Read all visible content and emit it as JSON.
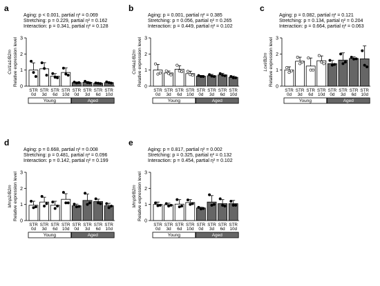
{
  "colors": {
    "young_fill": "#ffffff",
    "aged_fill": "#666666",
    "line": "#000000"
  },
  "chart_data": [
    {
      "panel": "a",
      "type": "bar",
      "ylabel": "Relative expression level",
      "gene": "Col1a1/B2m",
      "stats": [
        "Aging: p < 0.001, partial η² = 0.069",
        "Stretching: p = 0.229, partial η² = 0.162",
        "Interaction: p = 0.341, partial η² = 0.128"
      ],
      "ylim": [
        0,
        3
      ],
      "yticks": [
        "0",
        "1",
        "2",
        "3"
      ],
      "categories": [
        "STR 0d",
        "STR 3d",
        "STR 6d",
        "STR 10d",
        "STR 0d",
        "STR 3d",
        "STR 6d",
        "STR 10d"
      ],
      "groups": [
        "Young",
        "Aged"
      ],
      "values": [
        1.0,
        1.08,
        0.62,
        0.85,
        0.22,
        0.24,
        0.18,
        0.22
      ],
      "errors": [
        0.45,
        0.38,
        0.16,
        0.28,
        0.04,
        0.05,
        0.03,
        0.04
      ],
      "points": [
        [
          1.55,
          0.85,
          0.6
        ],
        [
          1.45,
          1.1,
          0.68
        ],
        [
          0.78,
          0.55,
          0.52
        ],
        [
          1.12,
          0.75,
          0.68
        ],
        [
          0.25,
          0.2,
          0.22
        ],
        [
          0.3,
          0.22,
          0.2
        ],
        [
          0.2,
          0.18,
          0.16
        ],
        [
          0.26,
          0.22,
          0.19
        ]
      ]
    },
    {
      "panel": "b",
      "type": "bar",
      "ylabel": "Relative expression level",
      "gene": "Col4a1/B2m",
      "stats": [
        "Aging: p = 0.001, partial η² = 0.385",
        "Stretching: p = 0.056, partial η² = 0.265",
        "Interaction: p = 0.449, partial η² = 0.102"
      ],
      "ylim": [
        0,
        3
      ],
      "yticks": [
        "0",
        "1",
        "2",
        "3"
      ],
      "categories": [
        "STR 0d",
        "STR 3d",
        "STR 6d",
        "STR 10d",
        "STR 0d",
        "STR 3d",
        "STR 6d",
        "STR 10d"
      ],
      "groups": [
        "Young",
        "Aged"
      ],
      "values": [
        1.0,
        0.82,
        1.05,
        0.78,
        0.62,
        0.65,
        0.7,
        0.55
      ],
      "errors": [
        0.35,
        0.12,
        0.22,
        0.15,
        0.05,
        0.08,
        0.1,
        0.08
      ],
      "points": [
        [
          1.38,
          0.75,
          0.82
        ],
        [
          0.95,
          0.78,
          0.7
        ],
        [
          1.3,
          0.95,
          0.9
        ],
        [
          0.92,
          0.72,
          0.68
        ],
        [
          0.66,
          0.6,
          0.6
        ],
        [
          0.72,
          0.62,
          0.6
        ],
        [
          0.78,
          0.68,
          0.65
        ],
        [
          0.6,
          0.52,
          0.52
        ]
      ]
    },
    {
      "panel": "c",
      "type": "bar",
      "ylabel": "Relative expression level",
      "gene": "Loxl/B2m",
      "stats": [
        "Aging: p = 0.082, partial η² = 0.121",
        "Stretching: p = 0.134, partial η² = 0.204",
        "Interaction: p = 0.664, partial η² = 0.063"
      ],
      "ylim": [
        0,
        3
      ],
      "yticks": [
        "0",
        "1",
        "2",
        "3"
      ],
      "categories": [
        "STR 0d",
        "STR 3d",
        "STR 6d",
        "STR 10d",
        "STR 0d",
        "STR 3d",
        "STR 6d",
        "STR 10d"
      ],
      "groups": [
        "Young",
        "Aged"
      ],
      "values": [
        1.0,
        1.55,
        1.25,
        1.58,
        1.4,
        1.62,
        1.72,
        1.7
      ],
      "errors": [
        0.2,
        0.25,
        0.5,
        0.3,
        0.2,
        0.45,
        0.1,
        0.8
      ],
      "points": [
        [
          1.15,
          0.85,
          0.95
        ],
        [
          1.8,
          1.4,
          1.5
        ],
        [
          1.75,
          1.0,
          1.0
        ],
        [
          1.9,
          1.5,
          1.4
        ],
        [
          1.6,
          1.3,
          1.35
        ],
        [
          2.0,
          1.4,
          1.5
        ],
        [
          1.8,
          1.68,
          1.7
        ],
        [
          2.2,
          1.3,
          1.2
        ]
      ]
    },
    {
      "panel": "d",
      "type": "bar",
      "ylabel": "Relative expression level",
      "gene": "Mmp2/B2m",
      "stats": [
        "Aging: p = 0.668, partial η² = 0.008",
        "Stretching: p = 0.481, partial η² = 0.096",
        "Interaction: p = 0.142, partial η² = 0.199"
      ],
      "ylim": [
        0,
        3
      ],
      "yticks": [
        "0",
        "1",
        "2",
        "3"
      ],
      "categories": [
        "STR 0d",
        "STR 3d",
        "STR 6d",
        "STR 10d",
        "STR 0d",
        "STR 3d",
        "STR 6d",
        "STR 10d"
      ],
      "groups": [
        "Young",
        "Aged"
      ],
      "values": [
        0.95,
        1.15,
        0.95,
        1.32,
        0.92,
        1.25,
        1.18,
        0.92
      ],
      "errors": [
        0.25,
        0.3,
        0.25,
        0.35,
        0.1,
        0.4,
        0.15,
        0.15
      ],
      "points": [
        [
          1.2,
          0.8,
          0.85
        ],
        [
          1.5,
          0.9,
          1.05
        ],
        [
          1.15,
          0.75,
          0.9
        ],
        [
          1.75,
          1.1,
          1.1
        ],
        [
          1.02,
          0.85,
          0.88
        ],
        [
          1.7,
          1.0,
          1.1
        ],
        [
          1.35,
          1.1,
          1.05
        ],
        [
          1.05,
          0.8,
          0.9
        ]
      ]
    },
    {
      "panel": "e",
      "type": "bar",
      "ylabel": "Relative expression level",
      "gene": "Mmp9/B2m",
      "stats": [
        "Aging: p = 0.817, partial η² = 0.002",
        "Stretching: p = 0.325, partial η² = 0.132",
        "Interaction: p = 0.454, partial η² = 0.102"
      ],
      "ylim": [
        0,
        3
      ],
      "yticks": [
        "0",
        "1",
        "2",
        "3"
      ],
      "categories": [
        "STR 0d",
        "STR 3d",
        "STR 6d",
        "STR 10d",
        "STR 0d",
        "STR 3d",
        "STR 6d",
        "STR 10d"
      ],
      "groups": [
        "Young",
        "Aged"
      ],
      "values": [
        1.0,
        0.98,
        1.02,
        1.12,
        0.78,
        1.15,
        1.05,
        1.05
      ],
      "errors": [
        0.15,
        0.1,
        0.28,
        0.18,
        0.05,
        0.4,
        0.25,
        0.2
      ],
      "points": [
        [
          1.1,
          0.92,
          0.95
        ],
        [
          1.05,
          0.9,
          0.95
        ],
        [
          1.3,
          0.85,
          0.9
        ],
        [
          1.28,
          1.0,
          1.05
        ],
        [
          0.82,
          0.72,
          0.75
        ],
        [
          1.6,
          0.95,
          1.0
        ],
        [
          1.35,
          0.95,
          0.9
        ],
        [
          1.2,
          0.95,
          0.95
        ]
      ]
    }
  ]
}
